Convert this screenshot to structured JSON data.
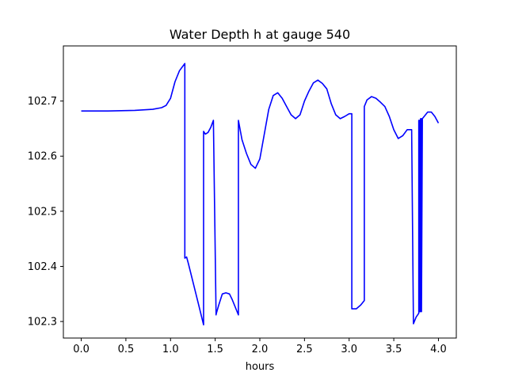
{
  "chart_data": {
    "type": "line",
    "title": "Water Depth h at gauge 540",
    "xlabel": "hours",
    "ylabel": "",
    "xlim": [
      -0.2,
      4.2
    ],
    "ylim": [
      102.27,
      102.8
    ],
    "x_ticks": [
      0.0,
      0.5,
      1.0,
      1.5,
      2.0,
      2.5,
      3.0,
      3.5,
      4.0
    ],
    "x_tick_labels": [
      "0.0",
      "0.5",
      "1.0",
      "1.5",
      "2.0",
      "2.5",
      "3.0",
      "3.5",
      "4.0"
    ],
    "y_ticks": [
      102.3,
      102.4,
      102.5,
      102.6,
      102.7
    ],
    "y_tick_labels": [
      "102.3",
      "102.4",
      "102.5",
      "102.6",
      "102.7"
    ],
    "grid": false,
    "legend": "none",
    "series": [
      {
        "color": "#0000ff",
        "x": [
          0.0,
          0.3,
          0.6,
          0.8,
          0.9,
          0.95,
          1.0,
          1.05,
          1.1,
          1.16,
          1.16,
          1.18,
          1.2,
          1.3,
          1.37,
          1.37,
          1.39,
          1.42,
          1.45,
          1.48,
          1.51,
          1.51,
          1.54,
          1.58,
          1.62,
          1.66,
          1.69,
          1.76,
          1.76,
          1.8,
          1.85,
          1.9,
          1.95,
          2.0,
          2.05,
          2.1,
          2.15,
          2.2,
          2.25,
          2.3,
          2.35,
          2.4,
          2.45,
          2.5,
          2.55,
          2.6,
          2.65,
          2.7,
          2.75,
          2.8,
          2.85,
          2.9,
          2.95,
          3.0,
          3.03,
          3.03,
          3.08,
          3.13,
          3.17,
          3.17,
          3.2,
          3.25,
          3.3,
          3.35,
          3.4,
          3.45,
          3.5,
          3.55,
          3.6,
          3.65,
          3.7,
          3.72,
          3.72,
          3.75,
          3.78,
          3.78,
          3.79,
          3.79,
          3.8,
          3.8,
          3.81,
          3.81,
          3.82,
          3.84,
          3.88,
          3.92,
          3.96,
          4.0
        ],
        "y": [
          102.682,
          102.682,
          102.683,
          102.685,
          102.688,
          102.692,
          102.705,
          102.735,
          102.755,
          102.768,
          102.415,
          102.417,
          102.405,
          102.34,
          102.294,
          102.645,
          102.64,
          102.643,
          102.652,
          102.665,
          102.312,
          102.313,
          102.33,
          102.35,
          102.352,
          102.35,
          102.34,
          102.312,
          102.665,
          102.63,
          102.605,
          102.585,
          102.578,
          102.595,
          102.64,
          102.685,
          102.71,
          102.715,
          102.705,
          102.69,
          102.675,
          102.668,
          102.675,
          102.7,
          102.718,
          102.733,
          102.738,
          102.732,
          102.722,
          102.695,
          102.675,
          102.668,
          102.672,
          102.677,
          102.677,
          102.323,
          102.323,
          102.33,
          102.338,
          102.69,
          102.702,
          102.708,
          102.705,
          102.698,
          102.69,
          102.672,
          102.648,
          102.632,
          102.637,
          102.648,
          102.648,
          102.296,
          102.296,
          102.308,
          102.315,
          102.665,
          102.665,
          102.318,
          102.318,
          102.668,
          102.668,
          102.318,
          102.668,
          102.672,
          102.68,
          102.68,
          102.672,
          102.66
        ]
      }
    ]
  }
}
